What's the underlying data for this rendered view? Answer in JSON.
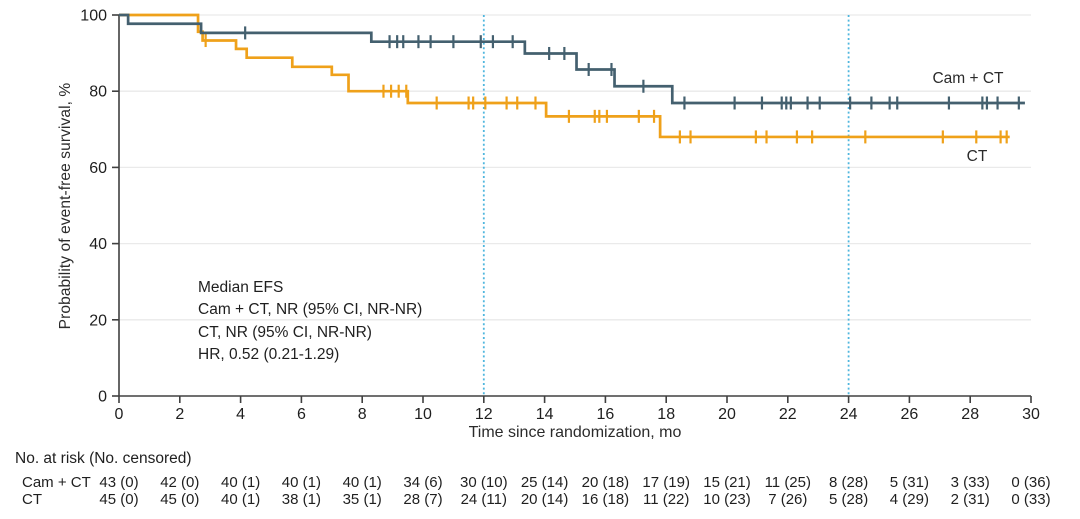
{
  "figure": {
    "y_axis": {
      "label": "Probability of event-free survival, %",
      "ticks": [
        0,
        20,
        40,
        60,
        80,
        100
      ]
    },
    "x_axis": {
      "label": "Time since randomization, mo",
      "ticks": [
        0,
        2,
        4,
        6,
        8,
        10,
        12,
        14,
        16,
        18,
        20,
        22,
        24,
        26,
        28,
        30
      ]
    },
    "annotation": {
      "lines": [
        "Median EFS",
        "Cam + CT, NR (95% CI, NR-NR)",
        "CT, NR (95% CI, NR-NR)",
        "HR, 0.52 (0.21-1.29)"
      ]
    },
    "curve_labels": {
      "cam_ct": "Cam + CT",
      "ct": "CT"
    },
    "risk_table": {
      "title": "No. at risk (No. censored)",
      "rows": [
        {
          "label": "Cam + CT",
          "values": [
            "43 (0)",
            "42 (0)",
            "40 (1)",
            "40 (1)",
            "40 (1)",
            "34 (6)",
            "30 (10)",
            "25 (14)",
            "20 (18)",
            "17 (19)",
            "15 (21)",
            "11 (25)",
            "8 (28)",
            "5 (31)",
            "3 (33)",
            "0 (36)"
          ]
        },
        {
          "label": "CT",
          "values": [
            "45 (0)",
            "45 (0)",
            "40 (1)",
            "38 (1)",
            "35 (1)",
            "28 (7)",
            "24 (11)",
            "20 (14)",
            "16 (18)",
            "11 (22)",
            "10 (23)",
            "7 (26)",
            "5 (28)",
            "4 (29)",
            "2 (31)",
            "0 (33)"
          ]
        }
      ]
    },
    "colors": {
      "cam_ct": "#44606F",
      "ct": "#EFA11A",
      "reference_line": "#4FB6DE",
      "gridline": "#EAEAEA",
      "axis": "#404040"
    }
  },
  "chart_data": {
    "type": "line",
    "subtype": "kaplan-meier-step",
    "title": "",
    "xlabel": "Time since randomization, mo",
    "ylabel": "Probability of event-free survival, %",
    "xlim": [
      0,
      30
    ],
    "ylim": [
      0,
      100
    ],
    "x_ticks": [
      0,
      2,
      4,
      6,
      8,
      10,
      12,
      14,
      16,
      18,
      20,
      22,
      24,
      26,
      28,
      30
    ],
    "y_ticks": [
      0,
      20,
      40,
      60,
      80,
      100
    ],
    "grid": "horizontal",
    "reference_lines_x": [
      12,
      24
    ],
    "legend_position": "end-of-curve",
    "series": [
      {
        "name": "Cam + CT",
        "color": "#44606F",
        "steps": [
          [
            0,
            100
          ],
          [
            0.3,
            97.7
          ],
          [
            2.7,
            95.3
          ],
          [
            8.3,
            93.0
          ],
          [
            13.35,
            89.9
          ],
          [
            15.05,
            85.7
          ],
          [
            16.3,
            81.3
          ],
          [
            18.2,
            76.9
          ]
        ],
        "end_t": 29.8,
        "censors": [
          [
            4.15,
            95.3
          ],
          [
            8.9,
            93.0
          ],
          [
            9.15,
            93.0
          ],
          [
            9.35,
            93.0
          ],
          [
            9.85,
            93.0
          ],
          [
            10.25,
            93.0
          ],
          [
            11.0,
            93.0
          ],
          [
            11.9,
            93.0
          ],
          [
            12.3,
            93.0
          ],
          [
            12.95,
            93.0
          ],
          [
            14.15,
            89.9
          ],
          [
            14.65,
            89.9
          ],
          [
            15.45,
            85.7
          ],
          [
            16.2,
            85.7
          ],
          [
            17.25,
            81.3
          ],
          [
            18.6,
            76.9
          ],
          [
            20.25,
            76.9
          ],
          [
            21.15,
            76.9
          ],
          [
            21.8,
            76.9
          ],
          [
            21.95,
            76.9
          ],
          [
            22.1,
            76.9
          ],
          [
            22.65,
            76.9
          ],
          [
            23.05,
            76.9
          ],
          [
            24.05,
            76.9
          ],
          [
            24.75,
            76.9
          ],
          [
            25.35,
            76.9
          ],
          [
            25.6,
            76.9
          ],
          [
            27.3,
            76.9
          ],
          [
            28.4,
            76.9
          ],
          [
            28.55,
            76.9
          ],
          [
            28.9,
            76.9
          ],
          [
            29.6,
            76.9
          ]
        ],
        "label_pos": {
          "t": 27.95,
          "p": 82.8
        }
      },
      {
        "name": "CT",
        "color": "#EFA11A",
        "steps": [
          [
            0,
            100
          ],
          [
            2.6,
            95.6
          ],
          [
            2.75,
            93.3
          ],
          [
            3.85,
            91.1
          ],
          [
            4.2,
            88.8
          ],
          [
            5.7,
            86.4
          ],
          [
            7.0,
            84.3
          ],
          [
            7.55,
            80.0
          ],
          [
            9.5,
            76.9
          ],
          [
            14.05,
            73.4
          ],
          [
            17.8,
            68.0
          ]
        ],
        "end_t": 29.3,
        "censors": [
          [
            2.85,
            93.3
          ],
          [
            8.7,
            80.0
          ],
          [
            8.95,
            80.0
          ],
          [
            9.2,
            80.0
          ],
          [
            9.45,
            80.0
          ],
          [
            10.45,
            76.9
          ],
          [
            11.5,
            76.9
          ],
          [
            11.65,
            76.9
          ],
          [
            12.05,
            76.9
          ],
          [
            12.75,
            76.9
          ],
          [
            13.1,
            76.9
          ],
          [
            13.7,
            76.9
          ],
          [
            14.8,
            73.4
          ],
          [
            15.65,
            73.4
          ],
          [
            15.8,
            73.4
          ],
          [
            16.05,
            73.4
          ],
          [
            17.1,
            73.4
          ],
          [
            17.6,
            73.4
          ],
          [
            18.45,
            68.0
          ],
          [
            18.8,
            68.0
          ],
          [
            20.95,
            68.0
          ],
          [
            21.3,
            68.0
          ],
          [
            22.3,
            68.0
          ],
          [
            22.8,
            68.0
          ],
          [
            24.55,
            68.0
          ],
          [
            27.1,
            68.0
          ],
          [
            28.2,
            68.0
          ],
          [
            29.0,
            68.0
          ],
          [
            29.2,
            68.0
          ]
        ],
        "label_pos": {
          "t": 28.2,
          "p": 61.0
        }
      }
    ]
  }
}
